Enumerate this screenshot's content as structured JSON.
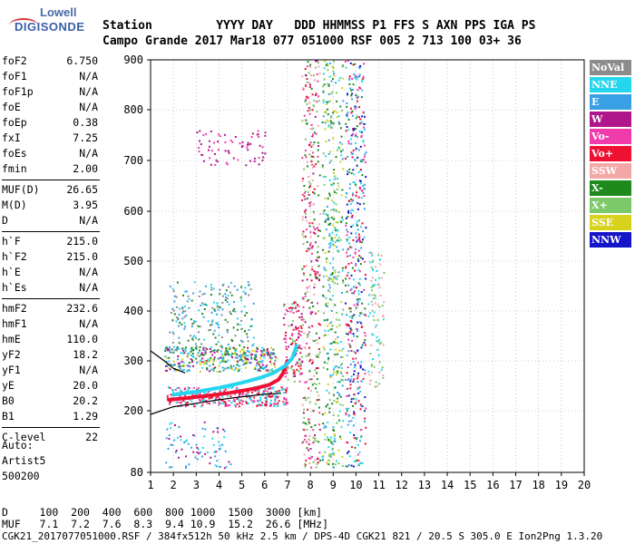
{
  "logo": {
    "line1": "Lowell",
    "line2": "DIGISONDE"
  },
  "header": {
    "labels": [
      "Station",
      "YYYY",
      "DAY",
      "DDD",
      "HHMMSS",
      "P1",
      "FFS",
      "S",
      "AXN",
      "PPS",
      "IGA",
      "PS"
    ],
    "values": [
      "Campo Grande",
      "2017",
      "Mar18",
      "077",
      "051000",
      "RSF",
      "005",
      "2",
      "713",
      "100",
      "03+",
      "36"
    ]
  },
  "params": [
    {
      "k": "foF2",
      "v": "6.750"
    },
    {
      "k": "foF1",
      "v": "N/A"
    },
    {
      "k": "foF1p",
      "v": "N/A"
    },
    {
      "k": "foE",
      "v": "N/A"
    },
    {
      "k": "foEp",
      "v": "0.38"
    },
    {
      "k": "fxI",
      "v": "7.25"
    },
    {
      "k": "foEs",
      "v": "N/A"
    },
    {
      "k": "fmin",
      "v": "2.00"
    },
    {
      "k": "MUF(D)",
      "v": "26.65"
    },
    {
      "k": "M(D)",
      "v": "3.95"
    },
    {
      "k": "D",
      "v": "N/A"
    },
    {
      "k": "h`F",
      "v": "215.0"
    },
    {
      "k": "h`F2",
      "v": "215.0"
    },
    {
      "k": "h`E",
      "v": "N/A"
    },
    {
      "k": "h`Es",
      "v": "N/A"
    },
    {
      "k": "hmF2",
      "v": "232.6"
    },
    {
      "k": "hmF1",
      "v": "N/A"
    },
    {
      "k": "hmE",
      "v": "110.0"
    },
    {
      "k": "yF2",
      "v": "18.2"
    },
    {
      "k": "yF1",
      "v": "N/A"
    },
    {
      "k": "yE",
      "v": "20.0"
    },
    {
      "k": "B0",
      "v": "20.2"
    },
    {
      "k": "B1",
      "v": "1.29"
    },
    {
      "k": "C-level",
      "v": "22"
    }
  ],
  "auto": {
    "line1": "Auto:",
    "line2": "Artist5",
    "line3": "500200"
  },
  "legend": [
    {
      "label": "NoVal",
      "color": "#8c8c8c"
    },
    {
      "label": "NNE",
      "color": "#26d6ef"
    },
    {
      "label": "E",
      "color": "#3aa0e6"
    },
    {
      "label": "W",
      "color": "#b0168c"
    },
    {
      "label": "Vo-",
      "color": "#f03caa"
    },
    {
      "label": "Vo+",
      "color": "#ee1133"
    },
    {
      "label": "SSW",
      "color": "#f3a8a8"
    },
    {
      "label": "X-",
      "color": "#1e8a1e"
    },
    {
      "label": "X+",
      "color": "#7cc96a"
    },
    {
      "label": "SSE",
      "color": "#d6d21e"
    },
    {
      "label": "NNW",
      "color": "#1414c8"
    }
  ],
  "dtable": {
    "row1_label": "D",
    "row1": [
      "100",
      "200",
      "400",
      "600",
      "800",
      "1000",
      "1500",
      "3000"
    ],
    "row1_unit": "[km]",
    "row2_label": "MUF",
    "row2": [
      "7.1",
      "7.2",
      "7.6",
      "8.3",
      "9.4",
      "10.9",
      "15.2",
      "26.6"
    ],
    "row2_unit": "[MHz]"
  },
  "footer": "CGK21_2017077051000.RSF / 384fx512h 50 kHz 2.5 km / DPS-4D CGK21 821 / 20.5 S 305.0 E Ion2Png 1.3.20",
  "chart_data": {
    "type": "scatter",
    "xlim": [
      1,
      20
    ],
    "ylim": [
      80,
      900
    ],
    "xticks": [
      "1",
      "2",
      "3",
      "4",
      "5",
      "6",
      "7",
      "8",
      "9",
      "10",
      "11",
      "12",
      "13",
      "14",
      "15",
      "16",
      "17",
      "18",
      "19",
      "20"
    ],
    "yticks": [
      "80",
      "200",
      "300",
      "400",
      "500",
      "600",
      "700",
      "800",
      "900"
    ],
    "grid": "dotted",
    "legend_position": "right",
    "traces": [
      {
        "name": "O-trace F2",
        "color": "#ee1133",
        "x": [
          1.8,
          2.5,
          3.5,
          4.5,
          5.5,
          6.2,
          6.6,
          6.8,
          7.0
        ],
        "y": [
          222,
          225,
          230,
          236,
          244,
          252,
          262,
          275,
          300
        ]
      },
      {
        "name": "X-trace F2",
        "color": "#26d6ef",
        "x": [
          2.0,
          3.0,
          4.0,
          5.0,
          5.8,
          6.4,
          6.9,
          7.2,
          7.4
        ],
        "y": [
          232,
          238,
          246,
          256,
          266,
          276,
          290,
          305,
          330
        ]
      },
      {
        "name": "model O",
        "color": "#000000",
        "x": [
          1.0,
          2.0,
          3.0,
          4.0,
          5.0,
          6.0,
          6.7
        ],
        "y": [
          193,
          208,
          215,
          222,
          228,
          233,
          235
        ]
      },
      {
        "name": "model X",
        "color": "#000000",
        "x": [
          1.0,
          1.6,
          2.0,
          2.5
        ],
        "y": [
          320,
          300,
          285,
          276
        ]
      }
    ]
  }
}
